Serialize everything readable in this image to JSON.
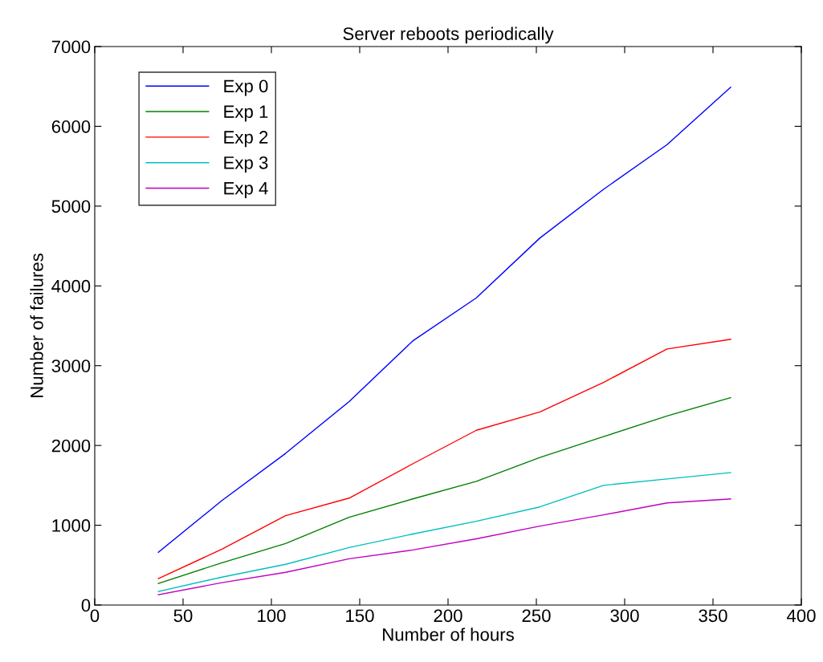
{
  "chart_data": {
    "type": "line",
    "title": "Server reboots periodically",
    "xlabel": "Number of hours",
    "ylabel": "Number of failures",
    "x": [
      36,
      72,
      108,
      144,
      180,
      216,
      252,
      288,
      324,
      360
    ],
    "series": [
      {
        "name": "Exp 0",
        "color": "#0000ff",
        "values": [
          660,
          1310,
          1900,
          2550,
          3310,
          3850,
          4600,
          5210,
          5770,
          6490
        ]
      },
      {
        "name": "Exp 1",
        "color": "#008000",
        "values": [
          270,
          530,
          770,
          1100,
          1330,
          1550,
          1850,
          2110,
          2370,
          2600
        ]
      },
      {
        "name": "Exp 2",
        "color": "#ff0000",
        "values": [
          330,
          700,
          1120,
          1340,
          1770,
          2190,
          2420,
          2790,
          3210,
          3330
        ]
      },
      {
        "name": "Exp 3",
        "color": "#00bfbf",
        "values": [
          170,
          350,
          510,
          720,
          890,
          1050,
          1230,
          1500,
          1580,
          1660
        ]
      },
      {
        "name": "Exp 4",
        "color": "#bf00bf",
        "values": [
          130,
          280,
          410,
          580,
          690,
          830,
          990,
          1130,
          1280,
          1330
        ]
      }
    ],
    "xlim": [
      0,
      400
    ],
    "xticks": [
      0,
      50,
      100,
      150,
      200,
      250,
      300,
      350,
      400
    ],
    "ylim": [
      0,
      7000
    ],
    "yticks": [
      0,
      1000,
      2000,
      3000,
      4000,
      5000,
      6000,
      7000
    ],
    "grid": false,
    "legend": "top left",
    "marker": "none",
    "line_style": "solid"
  }
}
